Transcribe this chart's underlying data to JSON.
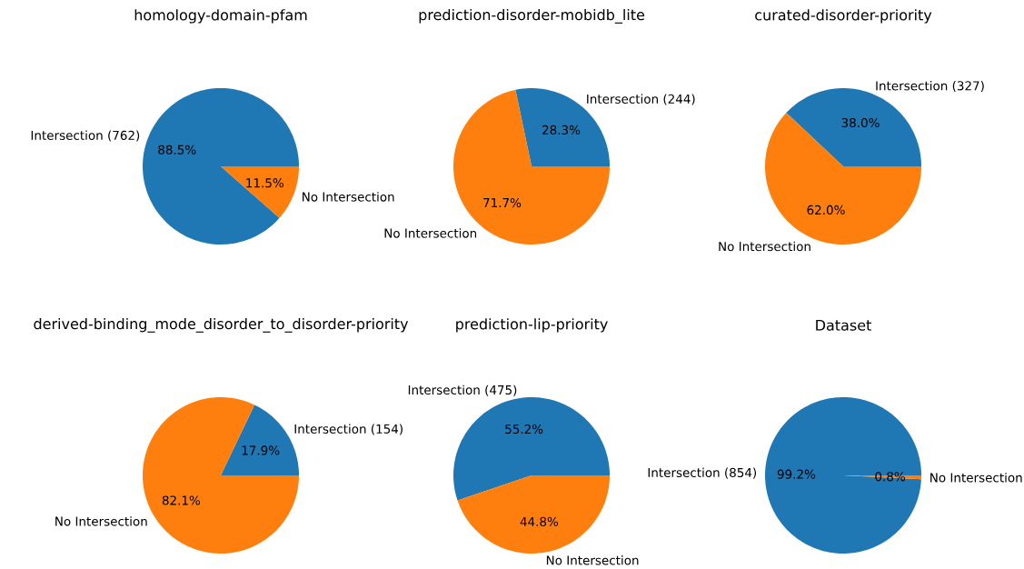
{
  "chart_data": [
    {
      "type": "pie",
      "title": "homology-domain-pfam",
      "categories": [
        "Intersection (762)",
        "No Intersection"
      ],
      "values": [
        88.5,
        11.5
      ],
      "colors": [
        "#1f77b4",
        "#ff7f0e"
      ],
      "value_labels": [
        "88.5%",
        "11.5%"
      ]
    },
    {
      "type": "pie",
      "title": "prediction-disorder-mobidb_lite",
      "categories": [
        "Intersection (244)",
        "No Intersection"
      ],
      "values": [
        28.3,
        71.7
      ],
      "colors": [
        "#1f77b4",
        "#ff7f0e"
      ],
      "value_labels": [
        "28.3%",
        "71.7%"
      ]
    },
    {
      "type": "pie",
      "title": "curated-disorder-priority",
      "categories": [
        "Intersection (327)",
        "No Intersection"
      ],
      "values": [
        38.0,
        62.0
      ],
      "colors": [
        "#1f77b4",
        "#ff7f0e"
      ],
      "value_labels": [
        "38.0%",
        "62.0%"
      ]
    },
    {
      "type": "pie",
      "title": "derived-binding_mode_disorder_to_disorder-priority",
      "categories": [
        "Intersection (154)",
        "No Intersection"
      ],
      "values": [
        17.9,
        82.1
      ],
      "colors": [
        "#1f77b4",
        "#ff7f0e"
      ],
      "value_labels": [
        "17.9%",
        "82.1%"
      ]
    },
    {
      "type": "pie",
      "title": "prediction-lip-priority",
      "categories": [
        "Intersection (475)",
        "No Intersection"
      ],
      "values": [
        55.2,
        44.8
      ],
      "colors": [
        "#1f77b4",
        "#ff7f0e"
      ],
      "value_labels": [
        "55.2%",
        "44.8%"
      ]
    },
    {
      "type": "pie",
      "title": "Dataset",
      "categories": [
        "Intersection (854)",
        "No Intersection"
      ],
      "values": [
        99.2,
        0.8
      ],
      "colors": [
        "#1f77b4",
        "#ff7f0e"
      ],
      "value_labels": [
        "99.2%",
        "0.8%"
      ]
    }
  ]
}
